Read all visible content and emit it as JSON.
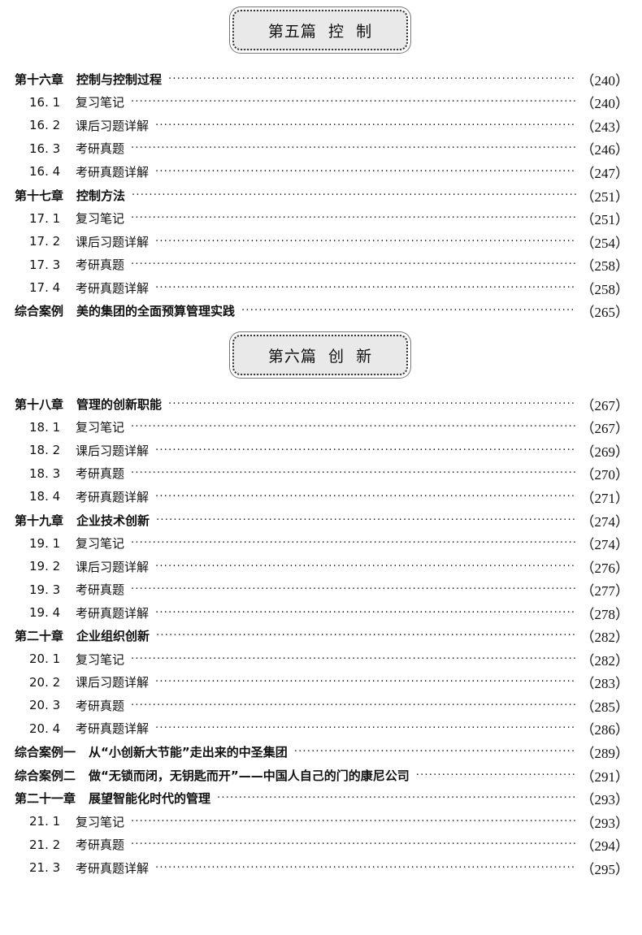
{
  "sections": [
    {
      "banner": "第五篇  控  制",
      "entries": [
        {
          "level": "chapter",
          "num": "第十六章",
          "title": "控制与控制过程",
          "page": "（240）"
        },
        {
          "level": "sub",
          "num": "16. 1",
          "title": "复习笔记",
          "page": "（240）"
        },
        {
          "level": "sub",
          "num": "16. 2",
          "title": "课后习题详解",
          "page": "（243）"
        },
        {
          "level": "sub",
          "num": "16. 3",
          "title": "考研真题",
          "page": "（246）"
        },
        {
          "level": "sub",
          "num": "16. 4",
          "title": "考研真题详解",
          "page": "（247）"
        },
        {
          "level": "chapter",
          "num": "第十七章",
          "title": "控制方法",
          "page": "（251）"
        },
        {
          "level": "sub",
          "num": "17. 1",
          "title": "复习笔记",
          "page": "（251）"
        },
        {
          "level": "sub",
          "num": "17. 2",
          "title": "课后习题详解",
          "page": "（254）"
        },
        {
          "level": "sub",
          "num": "17. 3",
          "title": "考研真题",
          "page": "（258）"
        },
        {
          "level": "sub",
          "num": "17. 4",
          "title": "考研真题详解",
          "page": "（258）"
        },
        {
          "level": "chapter",
          "num": "综合案例",
          "title": "美的集团的全面预算管理实践",
          "page": "（265）"
        }
      ]
    },
    {
      "banner": "第六篇  创  新",
      "entries": [
        {
          "level": "chapter",
          "num": "第十八章",
          "title": "管理的创新职能",
          "page": "（267）"
        },
        {
          "level": "sub",
          "num": "18. 1",
          "title": "复习笔记",
          "page": "（267）"
        },
        {
          "level": "sub",
          "num": "18. 2",
          "title": "课后习题详解",
          "page": "（269）"
        },
        {
          "level": "sub",
          "num": "18. 3",
          "title": "考研真题",
          "page": "（270）"
        },
        {
          "level": "sub",
          "num": "18. 4",
          "title": "考研真题详解",
          "page": "（271）"
        },
        {
          "level": "chapter",
          "num": "第十九章",
          "title": "企业技术创新",
          "page": "（274）"
        },
        {
          "level": "sub",
          "num": "19. 1",
          "title": "复习笔记",
          "page": "（274）"
        },
        {
          "level": "sub",
          "num": "19. 2",
          "title": "课后习题详解",
          "page": "（276）"
        },
        {
          "level": "sub",
          "num": "19. 3",
          "title": "考研真题",
          "page": "（277）"
        },
        {
          "level": "sub",
          "num": "19. 4",
          "title": "考研真题详解",
          "page": "（278）"
        },
        {
          "level": "chapter",
          "num": "第二十章",
          "title": "企业组织创新",
          "page": "（282）"
        },
        {
          "level": "sub",
          "num": "20. 1",
          "title": "复习笔记",
          "page": "（282）"
        },
        {
          "level": "sub",
          "num": "20. 2",
          "title": "课后习题详解",
          "page": "（283）"
        },
        {
          "level": "sub",
          "num": "20. 3",
          "title": "考研真题",
          "page": "（285）"
        },
        {
          "level": "sub",
          "num": "20. 4",
          "title": "考研真题详解",
          "page": "（286）"
        },
        {
          "level": "chapter",
          "num": "综合案例一",
          "title": "从“小创新大节能”走出来的中圣集团",
          "page": "（289）"
        },
        {
          "level": "chapter",
          "num": "综合案例二",
          "title": "做“无锁而闭，无钥匙而开”——中国人自己的门的康尼公司",
          "page": "（291）"
        },
        {
          "level": "chapter",
          "num": "第二十一章",
          "title": "展望智能化时代的管理",
          "page": "（293）"
        },
        {
          "level": "sub",
          "num": "21. 1",
          "title": "复习笔记",
          "page": "（293）"
        },
        {
          "level": "sub",
          "num": "21. 2",
          "title": "考研真题",
          "page": "（294）"
        },
        {
          "level": "sub",
          "num": "21. 3",
          "title": "考研真题详解",
          "page": "（295）"
        }
      ]
    }
  ]
}
